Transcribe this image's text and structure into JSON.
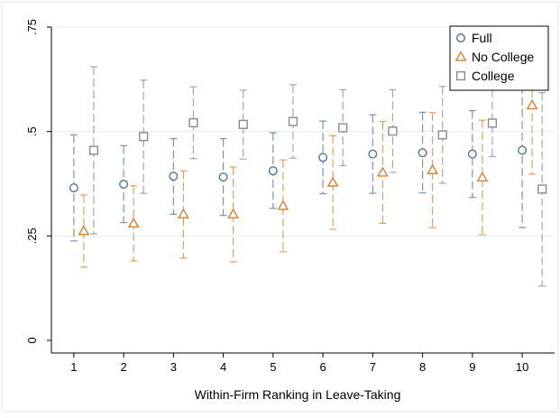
{
  "chart_data": {
    "type": "scatter",
    "title": "",
    "xlabel": "Within-Firm Ranking in Leave-Taking",
    "ylabel": "",
    "xlim": [
      0.55,
      10.65
    ],
    "ylim": [
      0,
      0.75
    ],
    "x_ticks": [
      {
        "value": 1,
        "label": "1"
      },
      {
        "value": 2,
        "label": "2"
      },
      {
        "value": 3,
        "label": "3"
      },
      {
        "value": 4,
        "label": "4"
      },
      {
        "value": 5,
        "label": "5"
      },
      {
        "value": 6,
        "label": "6"
      },
      {
        "value": 7,
        "label": "7"
      },
      {
        "value": 8,
        "label": "8"
      },
      {
        "value": 9,
        "label": "9"
      },
      {
        "value": 10,
        "label": "10"
      }
    ],
    "y_ticks": [
      {
        "value": 0,
        "label": "0"
      },
      {
        "value": 0.25,
        "label": ".25"
      },
      {
        "value": 0.5,
        "label": ".5"
      },
      {
        "value": 0.75,
        "label": ".75"
      }
    ],
    "grid": "horizontal",
    "legend_position": "top-right",
    "series": [
      {
        "name": "Full",
        "marker": "circle",
        "color": "#4f7596",
        "offset": 0,
        "points": [
          {
            "x": 1,
            "y": 0.365,
            "lo": 0.238,
            "hi": 0.492
          },
          {
            "x": 2,
            "y": 0.374,
            "lo": 0.282,
            "hi": 0.466
          },
          {
            "x": 3,
            "y": 0.393,
            "lo": 0.302,
            "hi": 0.483
          },
          {
            "x": 4,
            "y": 0.391,
            "lo": 0.299,
            "hi": 0.483
          },
          {
            "x": 5,
            "y": 0.406,
            "lo": 0.316,
            "hi": 0.497
          },
          {
            "x": 6,
            "y": 0.438,
            "lo": 0.351,
            "hi": 0.525
          },
          {
            "x": 7,
            "y": 0.446,
            "lo": 0.352,
            "hi": 0.54
          },
          {
            "x": 8,
            "y": 0.449,
            "lo": 0.353,
            "hi": 0.546
          },
          {
            "x": 9,
            "y": 0.446,
            "lo": 0.342,
            "hi": 0.55
          },
          {
            "x": 10,
            "y": 0.455,
            "lo": 0.27,
            "hi": 0.61
          }
        ]
      },
      {
        "name": "No College",
        "marker": "triangle",
        "color": "#d9822b",
        "offset": 0.2,
        "points": [
          {
            "x": 1,
            "y": 0.262,
            "lo": 0.175,
            "hi": 0.348
          },
          {
            "x": 2,
            "y": 0.28,
            "lo": 0.19,
            "hi": 0.37
          },
          {
            "x": 3,
            "y": 0.302,
            "lo": 0.197,
            "hi": 0.406
          },
          {
            "x": 4,
            "y": 0.302,
            "lo": 0.188,
            "hi": 0.415
          },
          {
            "x": 5,
            "y": 0.322,
            "lo": 0.212,
            "hi": 0.432
          },
          {
            "x": 6,
            "y": 0.378,
            "lo": 0.266,
            "hi": 0.49
          },
          {
            "x": 7,
            "y": 0.402,
            "lo": 0.28,
            "hi": 0.524
          },
          {
            "x": 8,
            "y": 0.408,
            "lo": 0.27,
            "hi": 0.545
          },
          {
            "x": 9,
            "y": 0.39,
            "lo": 0.253,
            "hi": 0.527
          },
          {
            "x": 10,
            "y": 0.563,
            "lo": 0.398,
            "hi": 0.628
          }
        ]
      },
      {
        "name": "College",
        "marker": "square",
        "color": "#8a8a8a",
        "offset": 0.4,
        "points": [
          {
            "x": 1,
            "y": 0.455,
            "lo": 0.255,
            "hi": 0.655
          },
          {
            "x": 2,
            "y": 0.488,
            "lo": 0.352,
            "hi": 0.623
          },
          {
            "x": 3,
            "y": 0.521,
            "lo": 0.435,
            "hi": 0.607
          },
          {
            "x": 4,
            "y": 0.517,
            "lo": 0.434,
            "hi": 0.599
          },
          {
            "x": 5,
            "y": 0.524,
            "lo": 0.436,
            "hi": 0.612
          },
          {
            "x": 6,
            "y": 0.509,
            "lo": 0.418,
            "hi": 0.6
          },
          {
            "x": 7,
            "y": 0.501,
            "lo": 0.402,
            "hi": 0.6
          },
          {
            "x": 8,
            "y": 0.492,
            "lo": 0.376,
            "hi": 0.608
          },
          {
            "x": 9,
            "y": 0.52,
            "lo": 0.44,
            "hi": 0.6
          },
          {
            "x": 10,
            "y": 0.362,
            "lo": 0.13,
            "hi": 0.593
          }
        ]
      }
    ]
  }
}
